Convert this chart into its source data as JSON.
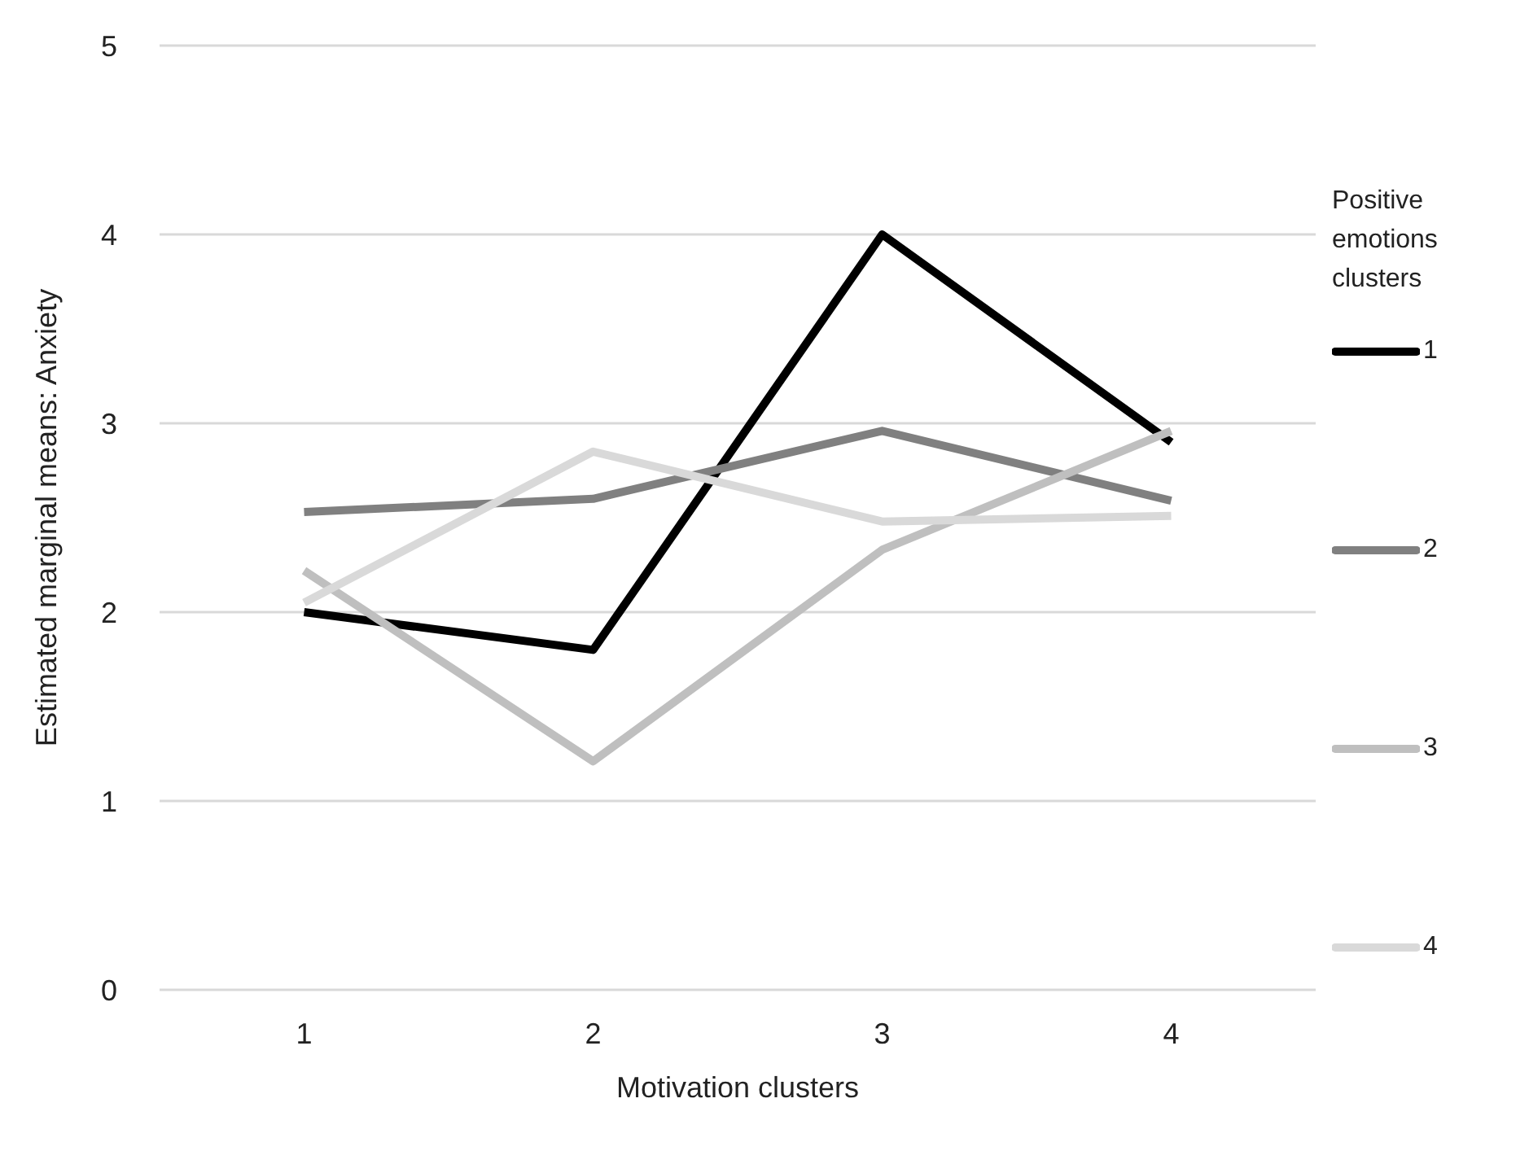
{
  "chart_data": {
    "type": "line",
    "xlabel": "Motivation clusters",
    "ylabel": "Estimated marginal means: Anxiety",
    "legend_title": "Positive emotions clusters",
    "categories": [
      "1",
      "2",
      "3",
      "4"
    ],
    "series": [
      {
        "name": "1",
        "color": "#000000",
        "values": [
          2.0,
          1.8,
          4.0,
          2.9
        ]
      },
      {
        "name": "2",
        "color": "#808080",
        "values": [
          2.53,
          2.6,
          2.96,
          2.59
        ]
      },
      {
        "name": "3",
        "color": "#bfbfbf",
        "values": [
          2.22,
          1.21,
          2.33,
          2.96
        ]
      },
      {
        "name": "4",
        "color": "#d9d9d9",
        "values": [
          2.05,
          2.85,
          2.48,
          2.51
        ]
      }
    ],
    "ylim": [
      0,
      5
    ],
    "yticks": [
      0,
      1,
      2,
      3,
      4,
      5
    ],
    "grid": "y",
    "legend": "right",
    "marker": "none",
    "line_style": "solid"
  }
}
